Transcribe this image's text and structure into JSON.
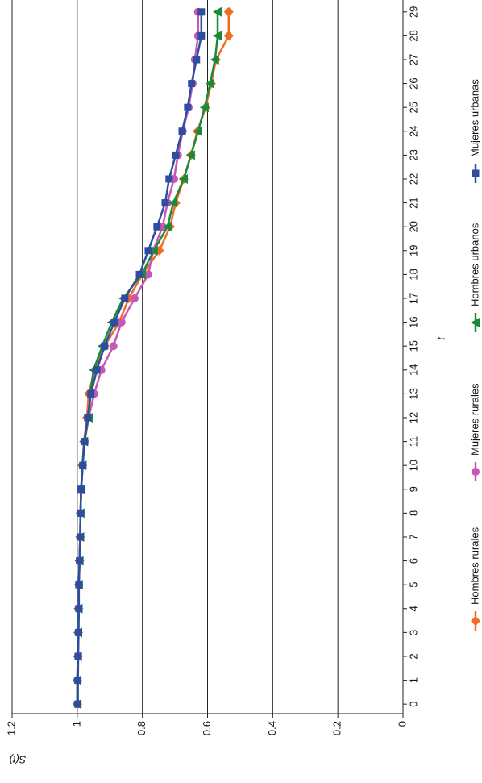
{
  "chart_data": {
    "type": "line",
    "rotated": true,
    "x_label": "t",
    "y_label": "S(t)",
    "x": [
      0,
      1,
      2,
      3,
      4,
      5,
      6,
      7,
      8,
      9,
      10,
      11,
      12,
      13,
      14,
      15,
      16,
      17,
      18,
      19,
      20,
      21,
      22,
      23,
      24,
      25,
      26,
      27,
      28,
      29
    ],
    "xlim": [
      -0.4,
      29.5
    ],
    "xticks": [
      0,
      1,
      2,
      3,
      4,
      5,
      6,
      7,
      8,
      9,
      10,
      11,
      12,
      13,
      14,
      15,
      16,
      17,
      18,
      19,
      20,
      21,
      22,
      23,
      24,
      25,
      26,
      27,
      28,
      29
    ],
    "ylim": [
      0,
      1.2
    ],
    "yticks": [
      0,
      0.2,
      0.4,
      0.6,
      0.8,
      1,
      1.2
    ],
    "grid": true,
    "legend": "bottom",
    "series": [
      {
        "name": "Hombres rurales",
        "color": "#f26b21",
        "marker": "diamond",
        "values": [
          1,
          1,
          0.998,
          0.997,
          0.996,
          0.995,
          0.993,
          0.991,
          0.99,
          0.988,
          0.984,
          0.979,
          0.97,
          0.965,
          0.946,
          0.916,
          0.871,
          0.842,
          0.8,
          0.748,
          0.715,
          0.698,
          0.673,
          0.651,
          0.631,
          0.606,
          0.589,
          0.574,
          0.535,
          0.535
        ]
      },
      {
        "name": "Mujeres rurales",
        "color": "#c757b5",
        "marker": "circle",
        "values": [
          1,
          1,
          0.998,
          0.997,
          0.996,
          0.995,
          0.993,
          0.991,
          0.99,
          0.988,
          0.984,
          0.977,
          0.965,
          0.948,
          0.926,
          0.889,
          0.864,
          0.824,
          0.782,
          0.767,
          0.738,
          0.723,
          0.703,
          0.691,
          0.676,
          0.658,
          0.646,
          0.639,
          0.629,
          0.629
        ]
      },
      {
        "name": "Hombres urbanos",
        "color": "#1a8a3a",
        "marker": "triangle",
        "values": [
          1,
          1,
          0.998,
          0.997,
          0.996,
          0.995,
          0.993,
          0.991,
          0.99,
          0.988,
          0.984,
          0.979,
          0.965,
          0.96,
          0.95,
          0.923,
          0.894,
          0.859,
          0.802,
          0.765,
          0.723,
          0.705,
          0.673,
          0.651,
          0.629,
          0.609,
          0.592,
          0.577,
          0.569,
          0.569
        ]
      },
      {
        "name": "Mujeres urbanas",
        "color": "#2e4da0",
        "marker": "square",
        "values": [
          0.998,
          0.998,
          0.997,
          0.996,
          0.995,
          0.995,
          0.993,
          0.991,
          0.99,
          0.988,
          0.983,
          0.978,
          0.968,
          0.958,
          0.94,
          0.916,
          0.886,
          0.854,
          0.809,
          0.782,
          0.755,
          0.73,
          0.718,
          0.698,
          0.678,
          0.661,
          0.649,
          0.634,
          0.619,
          0.619
        ]
      }
    ]
  }
}
